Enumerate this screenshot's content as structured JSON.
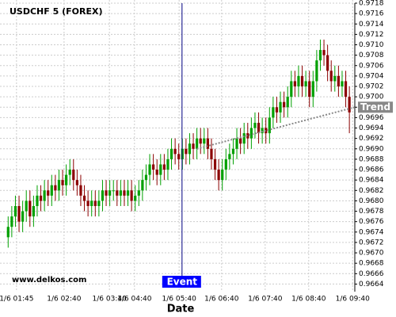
{
  "chart_data": {
    "type": "candlestick",
    "title": "USDCHF 5 (FOREX)",
    "x_label": "Date",
    "watermark": "www.delkos.com",
    "up_color": "#00a000",
    "down_color": "#8b0000",
    "grid": true,
    "xlim": [
      -0.5,
      95.5
    ],
    "ylim": [
      0.9663,
      0.9718
    ],
    "xticks": [
      {
        "value": 2.3,
        "label": "1/6 01:45"
      },
      {
        "value": 15.4,
        "label": "1/6 02:40"
      },
      {
        "value": 27.9,
        "label": "1/6 03:40"
      },
      {
        "value": 34.8,
        "label": "1/6 04:40"
      },
      {
        "value": 47.1,
        "label": "1/6 05:40"
      },
      {
        "value": 58.8,
        "label": "1/6 06:40"
      },
      {
        "value": 70.8,
        "label": "1/6 07:40"
      },
      {
        "value": 82.8,
        "label": "1/6 08:40"
      },
      {
        "value": 94.9,
        "label": "1/6 09:40"
      }
    ],
    "yticks": [
      0.9664,
      0.9666,
      0.9668,
      {
        "value": 0.967,
        "label": "0.9670"
      },
      0.9672,
      0.9674,
      0.9676,
      0.9678,
      {
        "value": 0.968,
        "label": "0.9680"
      },
      0.9682,
      0.9684,
      0.9686,
      0.9688,
      {
        "value": 0.969,
        "label": "0.9690"
      },
      0.9692,
      0.9694,
      0.9696,
      0.9698,
      {
        "value": 0.97,
        "label": "0.9700"
      },
      0.9702,
      0.9704,
      0.9706,
      0.9708,
      {
        "value": 0.971,
        "label": "0.9710"
      },
      0.9712,
      0.9714,
      0.9716,
      0.9718
    ],
    "open": [
      0.9673,
      0.9675,
      0.9677,
      0.9679,
      0.9676,
      0.9678,
      0.968,
      0.9677,
      0.9679,
      0.9681,
      0.968,
      0.9682,
      0.9681,
      0.9683,
      0.9682,
      0.9684,
      0.9683,
      0.9685,
      0.9686,
      0.9684,
      0.9683,
      0.9681,
      0.968,
      0.9679,
      0.968,
      0.9679,
      0.968,
      0.9682,
      0.9681,
      0.9682,
      0.9682,
      0.9681,
      0.9682,
      0.9681,
      0.9682,
      0.968,
      0.9681,
      0.9682,
      0.9684,
      0.9685,
      0.9687,
      0.9686,
      0.9685,
      0.9687,
      0.9686,
      0.9688,
      0.969,
      0.9689,
      0.9688,
      0.969,
      0.9689,
      0.9691,
      0.969,
      0.9692,
      0.9691,
      0.9692,
      0.969,
      0.9688,
      0.9686,
      0.9684,
      0.9686,
      0.9688,
      0.9689,
      0.969,
      0.9692,
      0.9691,
      0.9693,
      0.9692,
      0.9694,
      0.9695,
      0.9693,
      0.9694,
      0.9693,
      0.9696,
      0.9698,
      0.9697,
      0.9699,
      0.9698,
      0.97,
      0.9703,
      0.9702,
      0.9704,
      0.9702,
      0.9703,
      0.97,
      0.9703,
      0.9707,
      0.9709,
      0.9708,
      0.9705,
      0.9703,
      0.9704,
      0.9702,
      0.9703,
      0.97
    ],
    "high": [
      0.9677,
      0.9679,
      0.9681,
      0.9681,
      0.968,
      0.9682,
      0.9682,
      0.9681,
      0.9683,
      0.9683,
      0.9684,
      0.9684,
      0.9685,
      0.9685,
      0.9686,
      0.9686,
      0.9687,
      0.9688,
      0.9688,
      0.9686,
      0.9685,
      0.9683,
      0.9682,
      0.9682,
      0.9682,
      0.9682,
      0.9684,
      0.9684,
      0.9684,
      0.9684,
      0.9684,
      0.9684,
      0.9684,
      0.9684,
      0.9684,
      0.9683,
      0.9684,
      0.9686,
      0.9687,
      0.9689,
      0.9689,
      0.9688,
      0.9689,
      0.9689,
      0.969,
      0.9692,
      0.9692,
      0.9691,
      0.9692,
      0.9692,
      0.9693,
      0.9693,
      0.9694,
      0.9694,
      0.9694,
      0.9694,
      0.9692,
      0.969,
      0.9688,
      0.9688,
      0.969,
      0.9691,
      0.9692,
      0.9694,
      0.9694,
      0.9695,
      0.9695,
      0.9696,
      0.9697,
      0.9697,
      0.9696,
      0.9696,
      0.9698,
      0.97,
      0.97,
      0.9701,
      0.9701,
      0.9702,
      0.9705,
      0.9705,
      0.9706,
      0.9706,
      0.9705,
      0.9705,
      0.9705,
      0.9709,
      0.9711,
      0.9711,
      0.971,
      0.9707,
      0.9706,
      0.9706,
      0.9705,
      0.9705,
      0.9702
    ],
    "low": [
      0.9671,
      0.9673,
      0.9675,
      0.9674,
      0.9674,
      0.9676,
      0.9675,
      0.9675,
      0.9677,
      0.9678,
      0.9678,
      0.9679,
      0.9679,
      0.968,
      0.968,
      0.9681,
      0.9681,
      0.9683,
      0.9682,
      0.9681,
      0.9679,
      0.9678,
      0.9677,
      0.9677,
      0.9677,
      0.9677,
      0.9678,
      0.9679,
      0.9679,
      0.968,
      0.9679,
      0.9679,
      0.9679,
      0.9679,
      0.9678,
      0.9678,
      0.9679,
      0.968,
      0.9682,
      0.9683,
      0.9684,
      0.9683,
      0.9683,
      0.9684,
      0.9684,
      0.9686,
      0.9687,
      0.9686,
      0.9686,
      0.9687,
      0.9687,
      0.9688,
      0.9688,
      0.9689,
      0.9689,
      0.9688,
      0.9686,
      0.9684,
      0.9682,
      0.9682,
      0.9684,
      0.9686,
      0.9687,
      0.9688,
      0.9689,
      0.9689,
      0.969,
      0.969,
      0.9692,
      0.9691,
      0.9691,
      0.9691,
      0.9691,
      0.9694,
      0.9695,
      0.9695,
      0.9696,
      0.9696,
      0.9698,
      0.97,
      0.97,
      0.97,
      0.97,
      0.9698,
      0.9698,
      0.9701,
      0.9705,
      0.9706,
      0.9703,
      0.9701,
      0.9701,
      0.97,
      0.97,
      0.9698,
      0.9693
    ],
    "close": [
      0.9675,
      0.9677,
      0.9679,
      0.9676,
      0.9678,
      0.968,
      0.9677,
      0.9679,
      0.9681,
      0.968,
      0.9682,
      0.9681,
      0.9683,
      0.9682,
      0.9684,
      0.9683,
      0.9685,
      0.9686,
      0.9684,
      0.9683,
      0.9681,
      0.968,
      0.9679,
      0.968,
      0.9679,
      0.968,
      0.9682,
      0.9681,
      0.9682,
      0.9682,
      0.9681,
      0.9682,
      0.9681,
      0.9682,
      0.968,
      0.9681,
      0.9682,
      0.9684,
      0.9685,
      0.9687,
      0.9686,
      0.9685,
      0.9687,
      0.9686,
      0.9688,
      0.969,
      0.9689,
      0.9688,
      0.969,
      0.9689,
      0.9691,
      0.969,
      0.9692,
      0.9691,
      0.9692,
      0.969,
      0.9688,
      0.9686,
      0.9684,
      0.9686,
      0.9688,
      0.9689,
      0.969,
      0.9692,
      0.9691,
      0.9693,
      0.9692,
      0.9694,
      0.9695,
      0.9693,
      0.9694,
      0.9693,
      0.9696,
      0.9698,
      0.9697,
      0.9699,
      0.9698,
      0.97,
      0.9703,
      0.9702,
      0.9704,
      0.9702,
      0.9703,
      0.97,
      0.9703,
      0.9707,
      0.9709,
      0.9708,
      0.9705,
      0.9703,
      0.9704,
      0.9702,
      0.9703,
      0.97,
      0.9697
    ],
    "event": {
      "x": 47.9,
      "label": "Event",
      "color": "#0000ff"
    },
    "trend": {
      "label": "Trend",
      "start": [
        52,
        0.969
      ],
      "end": [
        95.5,
        0.9698
      ],
      "color": "#888888"
    }
  }
}
